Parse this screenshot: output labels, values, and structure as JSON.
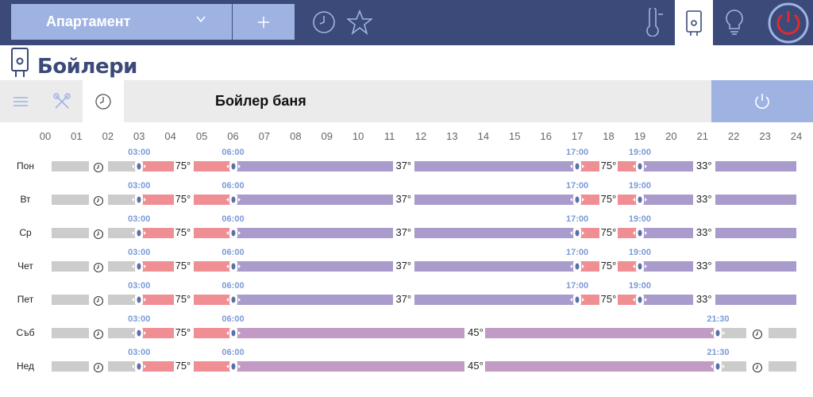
{
  "app": {
    "apartment_label": "Апартамент",
    "section_title": "Бойлери",
    "boiler_name": "Бойлер баня",
    "top_icons": [
      "clock-icon",
      "star-icon",
      "thermometer-icon",
      "boiler-icon",
      "bulb-icon",
      "power-icon"
    ],
    "toolbar_icons": [
      "list-icon",
      "tools-icon",
      "clock-icon"
    ]
  },
  "colors": {
    "topbar": "#3b4a78",
    "accent": "#9fb3e3",
    "grey_segment": "#cccccc",
    "red_segment": "#ef8f94",
    "purple_segment": "#a99bcb",
    "mauve_segment": "#c29bc4",
    "time_label": "#7a9ad8",
    "power_red": "#e02b2b"
  },
  "hours": [
    "00",
    "01",
    "02",
    "03",
    "04",
    "05",
    "06",
    "07",
    "08",
    "09",
    "10",
    "11",
    "12",
    "13",
    "14",
    "15",
    "16",
    "17",
    "18",
    "19",
    "20",
    "21",
    "22",
    "23",
    "24"
  ],
  "weekday_template": {
    "segments": [
      {
        "from": 0.2,
        "to": 1.4,
        "kind": "grey"
      },
      {
        "from": 2.0,
        "to": 3.0,
        "kind": "grey"
      },
      {
        "from": 3.0,
        "to": 4.1,
        "kind": "red"
      },
      {
        "from": 4.75,
        "to": 6.0,
        "kind": "red"
      },
      {
        "from": 6.0,
        "to": 11.1,
        "kind": "purple"
      },
      {
        "from": 11.8,
        "to": 17.0,
        "kind": "purple"
      },
      {
        "from": 17.0,
        "to": 17.7,
        "kind": "red"
      },
      {
        "from": 18.3,
        "to": 19.0,
        "kind": "red"
      },
      {
        "from": 19.0,
        "to": 20.7,
        "kind": "purple"
      },
      {
        "from": 21.4,
        "to": 24.0,
        "kind": "purple"
      }
    ],
    "handles": [
      3.0,
      6.0,
      17.0,
      19.0
    ],
    "clocks": [
      1.7
    ],
    "temps": [
      {
        "at": 4.4,
        "v": "75°"
      },
      {
        "at": 11.45,
        "v": "37°"
      },
      {
        "at": 18.0,
        "v": "75°"
      },
      {
        "at": 21.05,
        "v": "33°"
      }
    ],
    "times": [
      {
        "at": 3.0,
        "v": "03:00"
      },
      {
        "at": 6.0,
        "v": "06:00"
      },
      {
        "at": 17.0,
        "v": "17:00"
      },
      {
        "at": 19.0,
        "v": "19:00"
      }
    ]
  },
  "weekend_template": {
    "segments": [
      {
        "from": 0.2,
        "to": 1.4,
        "kind": "grey"
      },
      {
        "from": 2.0,
        "to": 3.0,
        "kind": "grey"
      },
      {
        "from": 3.0,
        "to": 4.1,
        "kind": "red"
      },
      {
        "from": 4.75,
        "to": 6.0,
        "kind": "red"
      },
      {
        "from": 6.0,
        "to": 13.4,
        "kind": "mauve"
      },
      {
        "from": 14.05,
        "to": 21.5,
        "kind": "mauve"
      },
      {
        "from": 21.5,
        "to": 22.4,
        "kind": "grey"
      },
      {
        "from": 23.1,
        "to": 24.0,
        "kind": "grey"
      }
    ],
    "handles": [
      3.0,
      6.0,
      21.5
    ],
    "clocks": [
      1.7,
      22.75
    ],
    "temps": [
      {
        "at": 4.4,
        "v": "75°"
      },
      {
        "at": 13.75,
        "v": "45°"
      }
    ],
    "times": [
      {
        "at": 3.0,
        "v": "03:00"
      },
      {
        "at": 6.0,
        "v": "06:00"
      },
      {
        "at": 21.5,
        "v": "21:30"
      }
    ]
  },
  "days": [
    {
      "label": "Пон",
      "template": "weekday"
    },
    {
      "label": "Вт",
      "template": "weekday"
    },
    {
      "label": "Ср",
      "template": "weekday"
    },
    {
      "label": "Чет",
      "template": "weekday"
    },
    {
      "label": "Пет",
      "template": "weekday"
    },
    {
      "label": "Съб",
      "template": "weekend"
    },
    {
      "label": "Нед",
      "template": "weekend"
    }
  ]
}
